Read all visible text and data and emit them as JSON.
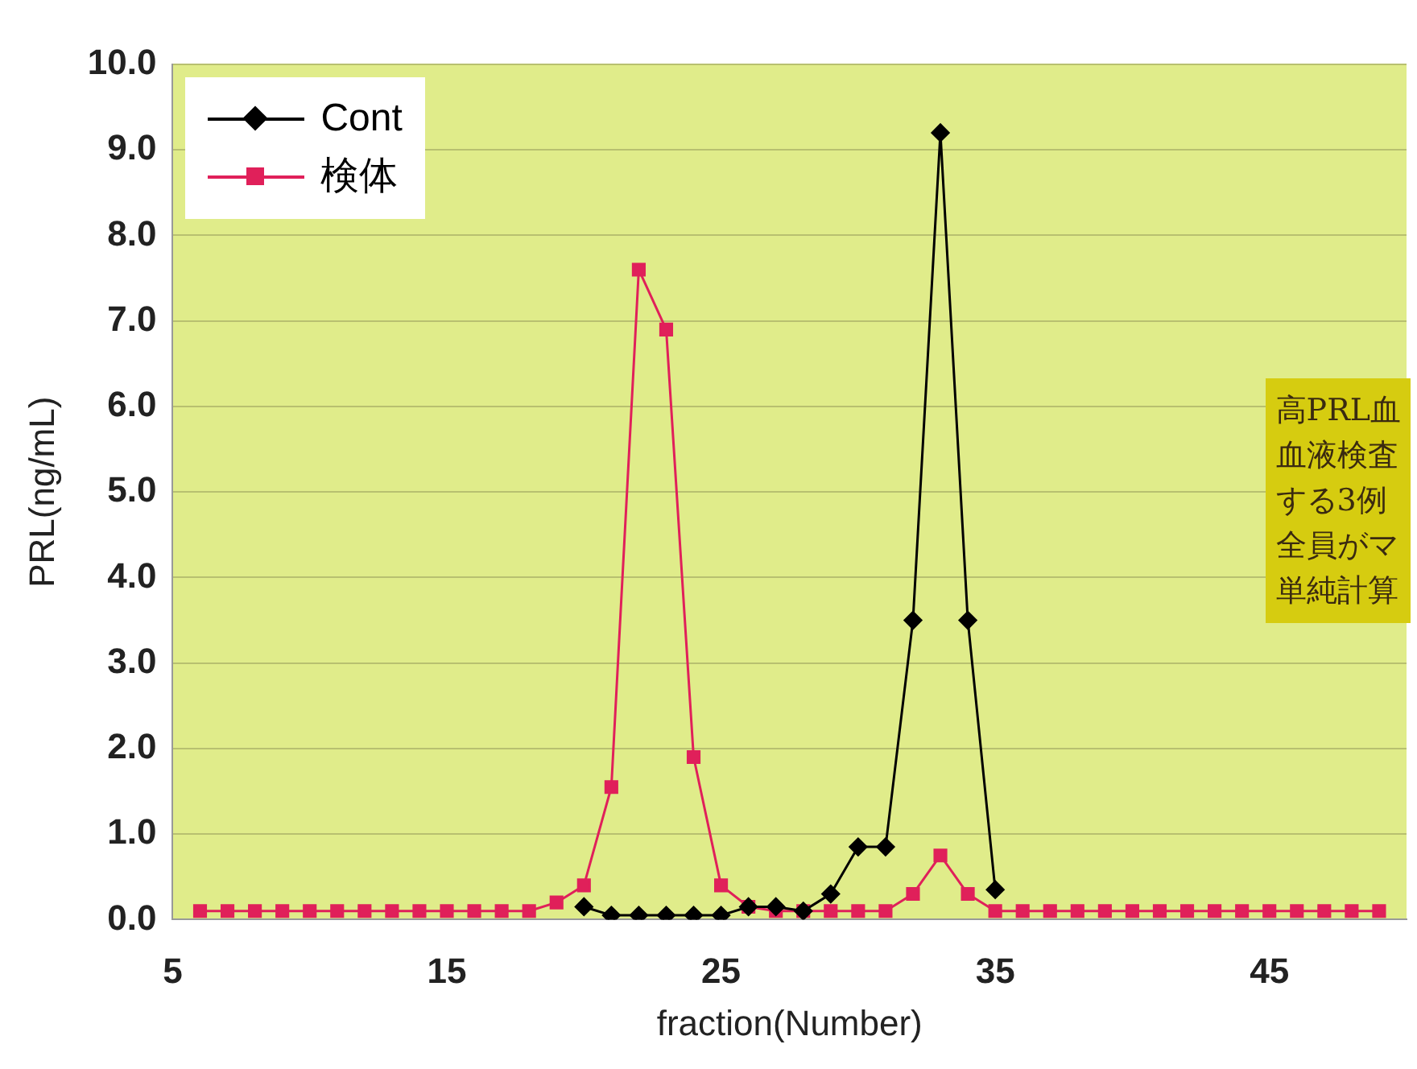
{
  "chart_data": {
    "type": "line",
    "xlabel": "fraction(Number)",
    "ylabel": "PRL(ng/mL)",
    "xlim": [
      5,
      50
    ],
    "xticks": [
      5,
      15,
      25,
      35,
      45
    ],
    "ylim": [
      0,
      10
    ],
    "yticks": [
      {
        "value": 0,
        "label": "0.0"
      },
      {
        "value": 1,
        "label": "1.0"
      },
      {
        "value": 2,
        "label": "2.0"
      },
      {
        "value": 3,
        "label": "3.0"
      },
      {
        "value": 4,
        "label": "4.0"
      },
      {
        "value": 5,
        "label": "5.0"
      },
      {
        "value": 6,
        "label": "6.0"
      },
      {
        "value": 7,
        "label": "7.0"
      },
      {
        "value": 8,
        "label": "8.0"
      },
      {
        "value": 9,
        "label": "9.0"
      },
      {
        "value": 10,
        "label": "10.0"
      }
    ],
    "grid": "y",
    "legend": "top left",
    "series": [
      {
        "name": "Cont",
        "color": "#000000",
        "marker": "diamond",
        "x": [
          20,
          21,
          22,
          23,
          24,
          25,
          26,
          27,
          28,
          29,
          30,
          31,
          32,
          33,
          34,
          35
        ],
        "values": [
          0.15,
          0.05,
          0.05,
          0.05,
          0.05,
          0.05,
          0.15,
          0.15,
          0.1,
          0.3,
          0.85,
          0.85,
          3.5,
          9.2,
          3.5,
          0.35
        ]
      },
      {
        "name": "検体",
        "color": "#e0205a",
        "marker": "square",
        "x": [
          6,
          7,
          8,
          9,
          10,
          11,
          12,
          13,
          14,
          15,
          16,
          17,
          18,
          19,
          20,
          21,
          22,
          23,
          24,
          25,
          26,
          27,
          28,
          29,
          30,
          31,
          32,
          33,
          34,
          35,
          36,
          37,
          38,
          39,
          40,
          41,
          42,
          43,
          44,
          45,
          46,
          47,
          48,
          49
        ],
        "values": [
          0.1,
          0.1,
          0.1,
          0.1,
          0.1,
          0.1,
          0.1,
          0.1,
          0.1,
          0.1,
          0.1,
          0.1,
          0.1,
          0.2,
          0.4,
          1.55,
          7.6,
          6.9,
          1.9,
          0.4,
          0.15,
          0.1,
          0.1,
          0.1,
          0.1,
          0.1,
          0.3,
          0.75,
          0.3,
          0.1,
          0.1,
          0.1,
          0.1,
          0.1,
          0.1,
          0.1,
          0.1,
          0.1,
          0.1,
          0.1,
          0.1,
          0.1,
          0.1,
          0.1
        ]
      }
    ],
    "annotations": [
      "高PRL血",
      "血液検査",
      "する3例",
      "全員がマ",
      "単純計算"
    ]
  }
}
